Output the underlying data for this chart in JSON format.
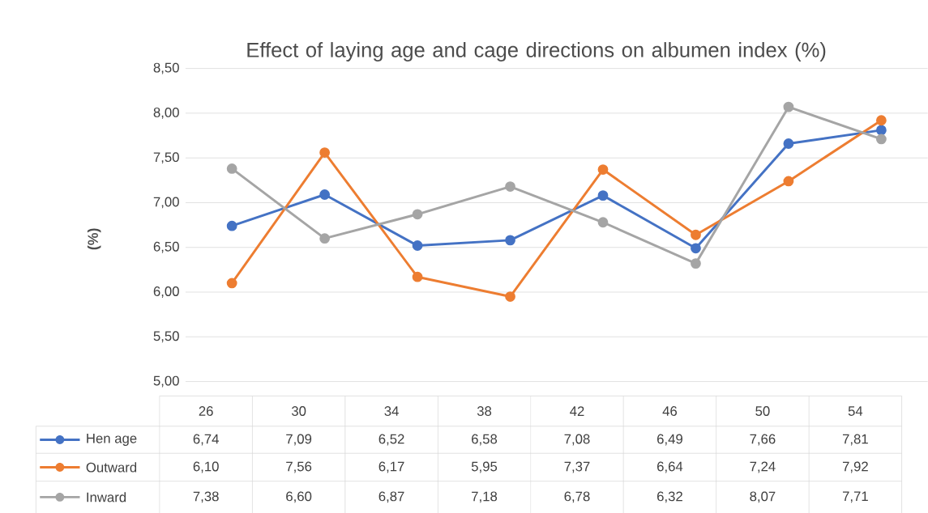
{
  "chart_data": {
    "type": "line",
    "title": "Effect of laying age and cage directions on albumen index (%)",
    "ylabel": "(%)",
    "categories": [
      "26",
      "30",
      "34",
      "38",
      "42",
      "46",
      "50",
      "54"
    ],
    "series": [
      {
        "name": "Hen age",
        "color": "#4472c4",
        "values": [
          6.74,
          7.09,
          6.52,
          6.58,
          7.08,
          6.49,
          7.66,
          7.81
        ],
        "value_labels": [
          "6,74",
          "7,09",
          "6,52",
          "6,58",
          "7,08",
          "6,49",
          "7,66",
          "7,81"
        ]
      },
      {
        "name": "Outward",
        "color": "#ed7d31",
        "values": [
          6.1,
          7.56,
          6.17,
          5.95,
          7.37,
          6.64,
          7.24,
          7.92
        ],
        "value_labels": [
          "6,10",
          "7,56",
          "6,17",
          "5,95",
          "7,37",
          "6,64",
          "7,24",
          "7,92"
        ]
      },
      {
        "name": "Inward",
        "color": "#a5a5a5",
        "values": [
          7.38,
          6.6,
          6.87,
          7.18,
          6.78,
          6.32,
          8.07,
          7.71
        ],
        "value_labels": [
          "7,38",
          "6,60",
          "6,87",
          "7,18",
          "6,78",
          "6,32",
          "8,07",
          "7,71"
        ]
      }
    ],
    "ylim": [
      5,
      8.5
    ],
    "yticks": [
      {
        "value": 5,
        "label": "5,00"
      },
      {
        "value": 5.5,
        "label": "5,50"
      },
      {
        "value": 6,
        "label": "6,00"
      },
      {
        "value": 6.5,
        "label": "6,50"
      },
      {
        "value": 7,
        "label": "7,00"
      },
      {
        "value": 7.5,
        "label": "7,50"
      },
      {
        "value": 8,
        "label": "8,00"
      },
      {
        "value": 8.5,
        "label": "8,50"
      }
    ],
    "grid": "y",
    "legend": "bottom",
    "marker": "circle",
    "line_style": "solid"
  }
}
